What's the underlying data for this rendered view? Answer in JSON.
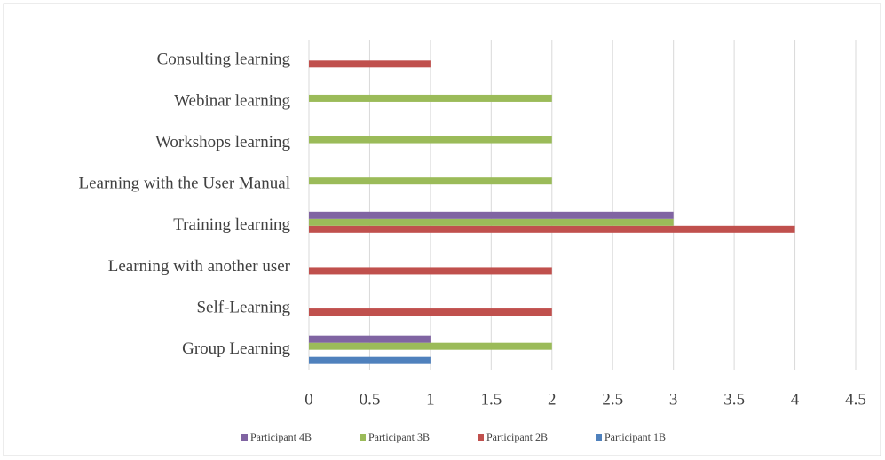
{
  "chart_data": {
    "type": "hbar",
    "categories": [
      "Group Learning",
      "Self-Learning",
      "Learning with another user",
      "Training learning",
      "Learning with the User Manual",
      "Workshops learning",
      "Webinar learning",
      "Consulting learning"
    ],
    "series": [
      {
        "name": "Participant 1B",
        "color": "#4f81bd",
        "values": [
          1,
          0,
          0,
          0,
          0,
          0,
          0,
          0
        ]
      },
      {
        "name": "Participant 2B",
        "color": "#c0504d",
        "values": [
          0,
          2,
          2,
          4,
          0,
          0,
          0,
          1
        ]
      },
      {
        "name": "Participant 3B",
        "color": "#9bbb59",
        "values": [
          2,
          0,
          0,
          3,
          2,
          2,
          2,
          0
        ]
      },
      {
        "name": "Participant 4B",
        "color": "#8064a2",
        "values": [
          1,
          0,
          0,
          3,
          0,
          0,
          0,
          0
        ]
      }
    ],
    "xlim": [
      0,
      4.5
    ],
    "xticks": [
      0,
      0.5,
      1,
      1.5,
      2,
      2.5,
      3,
      3.5,
      4,
      4.5
    ],
    "grid": true,
    "legend": "bottom"
  }
}
